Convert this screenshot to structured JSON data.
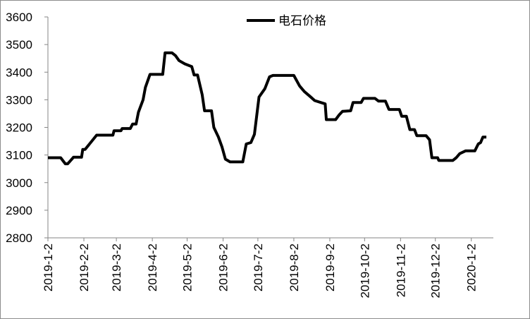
{
  "chart_data": {
    "type": "line",
    "x": [
      "2019-1-2",
      "2019-1-13",
      "2019-1-17",
      "2019-1-19",
      "2019-1-22",
      "2019-1-24",
      "2019-1-31",
      "2019-2-1",
      "2019-2-3",
      "2019-2-13",
      "2019-2-27",
      "2019-2-28",
      "2019-3-6",
      "2019-3-7",
      "2019-3-14",
      "2019-3-16",
      "2019-3-19",
      "2019-3-21",
      "2019-3-25",
      "2019-3-27",
      "2019-3-31",
      "2019-4-11",
      "2019-4-13",
      "2019-4-19",
      "2019-4-22",
      "2019-4-25",
      "2019-4-30",
      "2019-5-6",
      "2019-5-8",
      "2019-5-11",
      "2019-5-15",
      "2019-5-17",
      "2019-5-23",
      "2019-5-25",
      "2019-5-29",
      "2019-6-1",
      "2019-6-4",
      "2019-6-8",
      "2019-6-19",
      "2019-6-22",
      "2019-6-26",
      "2019-6-29",
      "2019-7-3",
      "2019-7-8",
      "2019-7-12",
      "2019-7-15",
      "2019-8-2",
      "2019-8-7",
      "2019-8-11",
      "2019-8-16",
      "2019-8-20",
      "2019-8-29",
      "2019-8-30",
      "2019-9-7",
      "2019-9-10",
      "2019-9-13",
      "2019-9-20",
      "2019-9-22",
      "2019-9-29",
      "2019-10-1",
      "2019-10-11",
      "2019-10-14",
      "2019-10-20",
      "2019-10-23",
      "2019-11-1",
      "2019-11-3",
      "2019-11-7",
      "2019-11-10",
      "2019-11-14",
      "2019-11-16",
      "2019-11-24",
      "2019-11-27",
      "2019-11-29",
      "2019-12-4",
      "2019-12-5",
      "2019-12-17",
      "2019-12-20",
      "2019-12-23",
      "2019-12-28",
      "2020-1-5",
      "2020-1-8",
      "2020-1-10",
      "2020-1-12",
      "2020-1-15"
    ],
    "series": [
      {
        "name": "电石价格",
        "color": "#000000",
        "values": [
          3090,
          3090,
          3068,
          3068,
          3082,
          3092,
          3092,
          3120,
          3120,
          3172,
          3172,
          3188,
          3188,
          3196,
          3196,
          3212,
          3212,
          3255,
          3300,
          3345,
          3392,
          3392,
          3470,
          3470,
          3460,
          3442,
          3430,
          3420,
          3390,
          3390,
          3318,
          3260,
          3260,
          3200,
          3165,
          3130,
          3085,
          3075,
          3075,
          3140,
          3145,
          3175,
          3310,
          3340,
          3383,
          3388,
          3388,
          3350,
          3330,
          3312,
          3297,
          3285,
          3228,
          3228,
          3245,
          3258,
          3260,
          3290,
          3290,
          3305,
          3305,
          3295,
          3295,
          3265,
          3265,
          3240,
          3240,
          3192,
          3192,
          3170,
          3170,
          3155,
          3090,
          3090,
          3080,
          3080,
          3090,
          3105,
          3115,
          3115,
          3140,
          3145,
          3165,
          3165
        ]
      }
    ],
    "xlim": [
      "2019-1-2",
      "2020-1-21"
    ],
    "xticks": [
      "2019-1-2",
      "2019-2-2",
      "2019-3-2",
      "2019-4-2",
      "2019-5-2",
      "2019-6-2",
      "2019-7-2",
      "2019-8-2",
      "2019-9-2",
      "2019-10-2",
      "2019-11-2",
      "2019-12-2",
      "2020-1-2"
    ],
    "ylim": [
      2800,
      3600
    ],
    "yticks": [
      2800,
      2900,
      3000,
      3100,
      3200,
      3300,
      3400,
      3500,
      3600
    ],
    "grid": false,
    "legend": "top"
  }
}
